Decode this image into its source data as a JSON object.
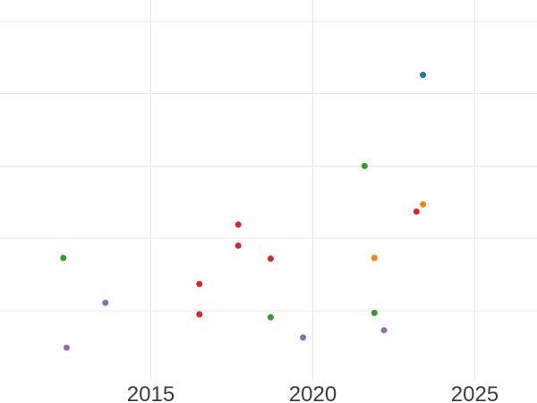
{
  "page": {
    "background_color": "#ffffff"
  },
  "chart_data": {
    "type": "scatter",
    "title": "",
    "xlabel": "",
    "ylabel": "",
    "legend": "none",
    "grid": true,
    "grid_color": "#e7e7e7",
    "tick_label_color": "#3c3c3c",
    "x_tick_labels": [
      "2015",
      "2020",
      "2025"
    ],
    "x_tick_years": [
      2015,
      2020,
      2025
    ],
    "x_domain": [
      2010.3,
      2026.9
    ],
    "y_axis_labels_visible": false,
    "y_gridline_units": [
      1,
      2,
      3,
      4,
      5
    ],
    "y_domain": [
      0,
      5.3
    ],
    "marker": {
      "shape": "circle",
      "radius_px": 3.5,
      "filled": true
    },
    "series": [
      {
        "name": "series-blue",
        "color": "#1f77b4",
        "points": [
          {
            "x": 2023.4,
            "y": 4.26
          }
        ]
      },
      {
        "name": "series-orange",
        "color": "#ff7f0e",
        "points": [
          {
            "x": 2023.4,
            "y": 2.47
          },
          {
            "x": 2021.9,
            "y": 1.73
          }
        ]
      },
      {
        "name": "series-green",
        "color": "#2ca02c",
        "points": [
          {
            "x": 2021.6,
            "y": 3.0
          },
          {
            "x": 2012.3,
            "y": 1.73
          },
          {
            "x": 2021.9,
            "y": 0.97
          },
          {
            "x": 2018.7,
            "y": 0.91
          }
        ]
      },
      {
        "name": "series-red",
        "color": "#d62728",
        "points": [
          {
            "x": 2023.2,
            "y": 2.37
          },
          {
            "x": 2017.7,
            "y": 2.19
          },
          {
            "x": 2017.7,
            "y": 1.9
          },
          {
            "x": 2018.7,
            "y": 1.72
          },
          {
            "x": 2016.5,
            "y": 1.37
          },
          {
            "x": 2016.5,
            "y": 0.95
          }
        ]
      },
      {
        "name": "series-purple",
        "color": "#9467bd",
        "points": [
          {
            "x": 2013.6,
            "y": 1.11
          },
          {
            "x": 2022.2,
            "y": 0.73
          },
          {
            "x": 2019.7,
            "y": 0.63
          },
          {
            "x": 2012.4,
            "y": 0.49
          }
        ]
      }
    ]
  }
}
